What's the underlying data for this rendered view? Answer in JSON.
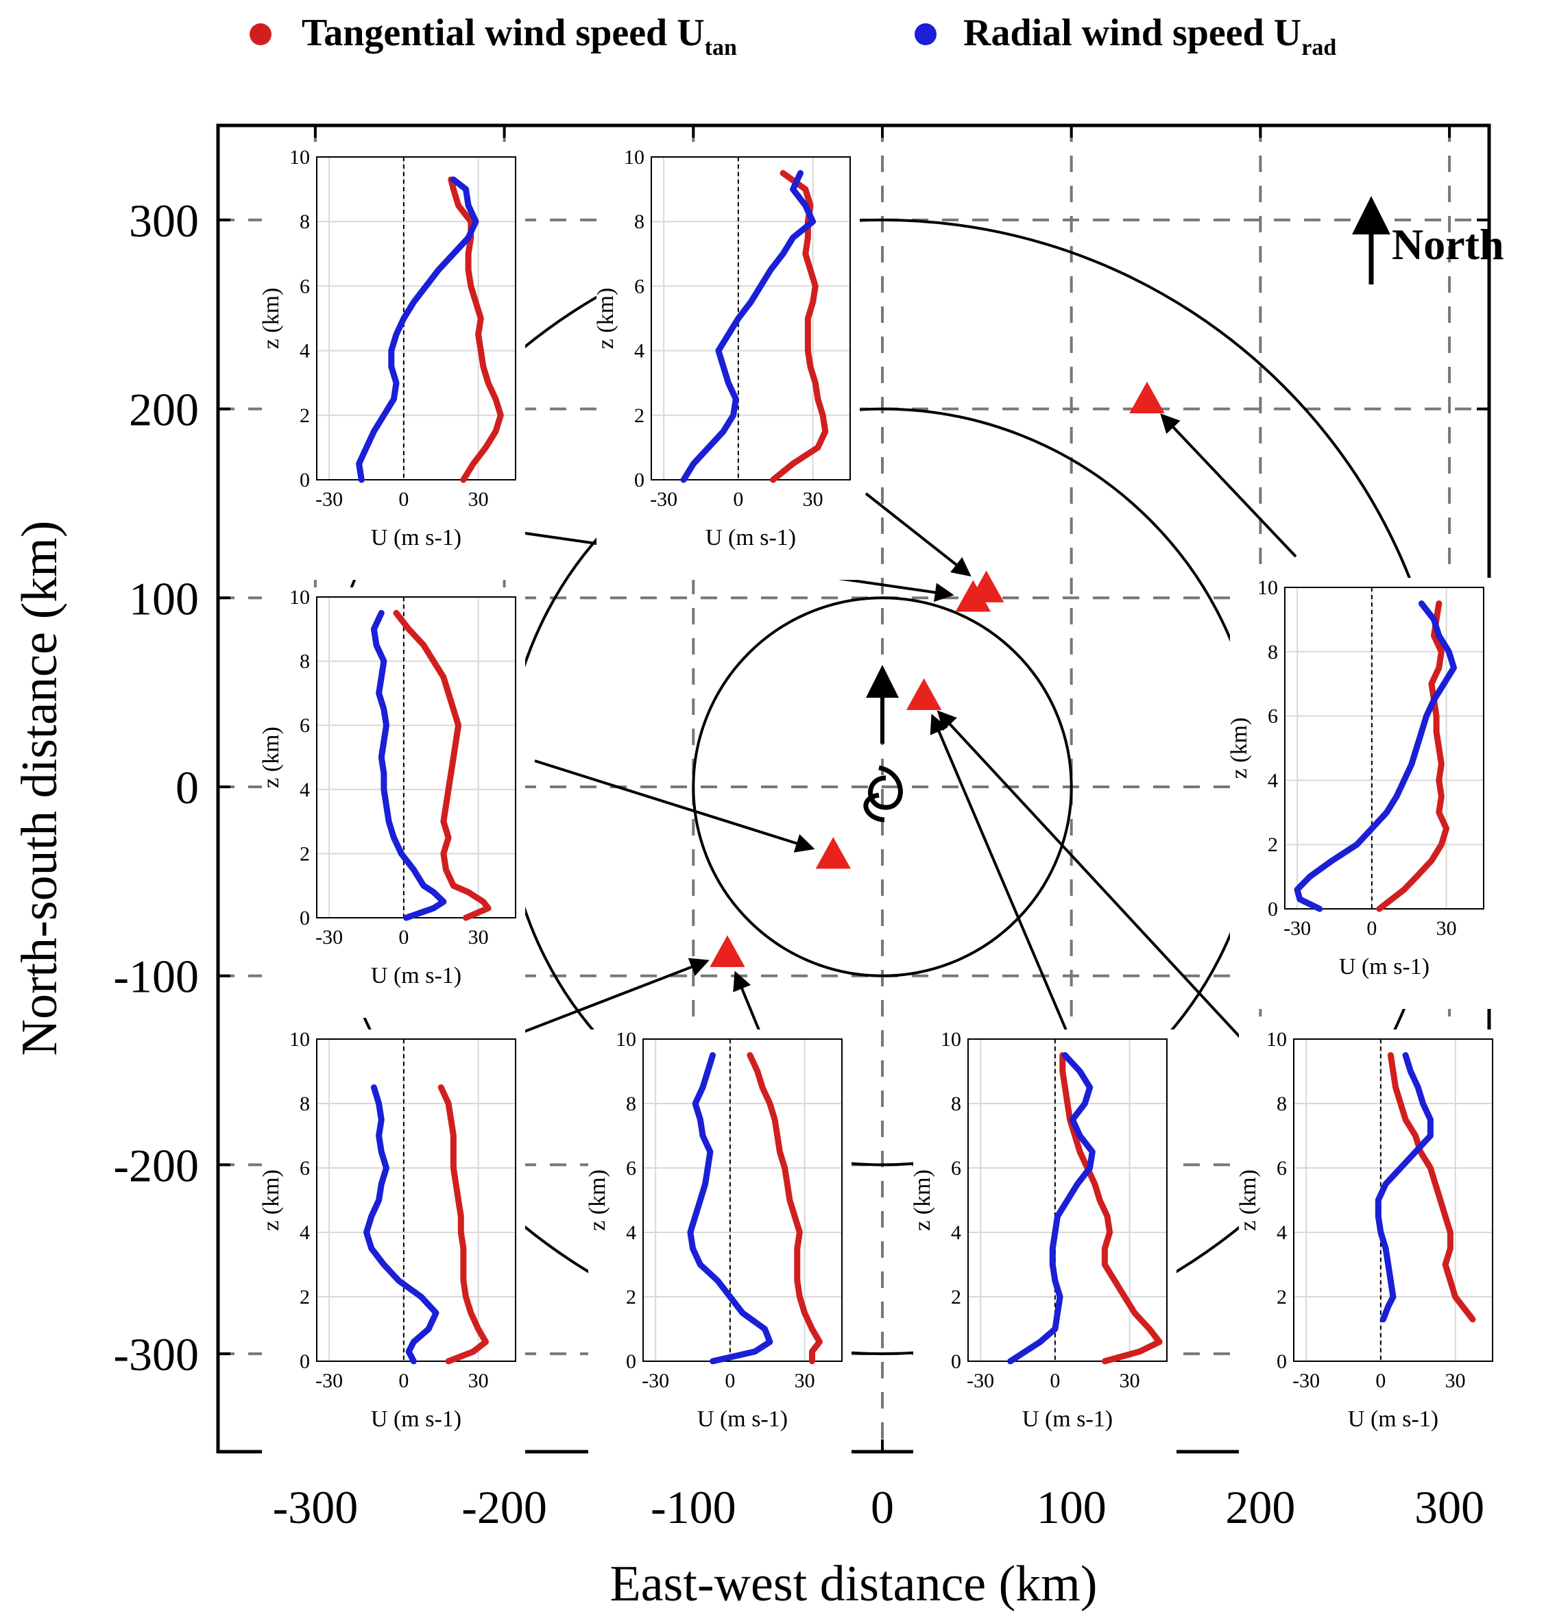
{
  "legend": {
    "tangential": {
      "label": "Tangential wind speed U",
      "sub": "tan",
      "color": "#d11f1f"
    },
    "radial": {
      "label": "Radial wind speed U",
      "sub": "rad",
      "color": "#1b1fd6"
    }
  },
  "north_label": "North",
  "chart_data": {
    "type": "scatter",
    "xlabel": "East-west distance (km)",
    "ylabel": "North-south distance (km)",
    "xlim": [
      -350,
      350
    ],
    "ylim": [
      -350,
      350
    ],
    "xticks": [
      -300,
      -200,
      -100,
      0,
      100,
      200,
      300
    ],
    "yticks": [
      -300,
      -200,
      -100,
      0,
      100,
      200,
      300
    ],
    "grid": "dashed",
    "range_circles_km": [
      100,
      200,
      300
    ],
    "storm_center": [
      0,
      0
    ],
    "storm_motion": "north",
    "sonde_positions": [
      {
        "id": "ne-outer",
        "x": 140,
        "y": 205
      },
      {
        "id": "n-rmw-a",
        "x": 48,
        "y": 100
      },
      {
        "id": "n-rmw-b",
        "x": 55,
        "y": 105
      },
      {
        "id": "n-inner",
        "x": 22,
        "y": 48
      },
      {
        "id": "sw-inner",
        "x": -26,
        "y": -36
      },
      {
        "id": "s-rmw",
        "x": -82,
        "y": -88
      }
    ],
    "profiles": {
      "xlabel": "U (m s-1)",
      "ylabel": "z (km)",
      "xlim": [
        -35,
        45
      ],
      "ylim": [
        0,
        10
      ],
      "xticks": [
        -30,
        0,
        30
      ],
      "yticks": [
        0,
        2,
        4,
        6,
        8,
        10
      ],
      "series": [
        "Tangential wind speed Utan",
        "Radial wind speed Urad"
      ],
      "panels": [
        {
          "id": "top-left",
          "target": "n-rmw-a",
          "z": [
            0,
            0.5,
            1,
            1.5,
            2,
            2.5,
            3,
            3.5,
            4,
            4.5,
            5,
            5.5,
            6,
            6.5,
            7,
            7.5,
            8,
            8.5,
            9,
            9.3
          ],
          "utan": [
            24,
            28,
            33,
            37,
            39,
            37,
            34,
            32,
            31,
            30,
            31,
            29,
            27,
            26,
            26,
            27,
            27,
            22,
            20,
            19
          ],
          "urad": [
            -17,
            -18,
            -15,
            -12,
            -8,
            -4,
            -3,
            -5,
            -5,
            -3,
            0,
            4,
            9,
            14,
            20,
            26,
            29,
            26,
            25,
            20
          ]
        },
        {
          "id": "top-mid",
          "target": "n-rmw-b",
          "z": [
            0,
            0.5,
            1,
            1.5,
            2,
            2.5,
            3,
            3.5,
            4,
            4.5,
            5,
            5.5,
            6,
            6.5,
            7,
            7.5,
            8,
            8.5,
            9,
            9.5
          ],
          "utan": [
            14,
            22,
            32,
            35,
            34,
            32,
            31,
            29,
            28,
            28,
            28,
            30,
            31,
            29,
            27,
            28,
            28,
            29,
            27,
            18
          ],
          "urad": [
            -22,
            -18,
            -12,
            -6,
            -2,
            -1,
            -4,
            -6,
            -8,
            -4,
            0,
            5,
            9,
            13,
            18,
            22,
            30,
            27,
            22,
            25
          ]
        },
        {
          "id": "mid-left",
          "target": "sw-inner",
          "z": [
            0,
            0.3,
            0.5,
            0.8,
            1,
            1.5,
            2,
            2.5,
            3,
            3.5,
            4,
            4.5,
            5,
            5.5,
            6,
            6.5,
            7,
            7.5,
            8,
            8.5,
            9,
            9.5
          ],
          "utan": [
            25,
            34,
            32,
            26,
            20,
            17,
            16,
            18,
            16,
            17,
            18,
            19,
            20,
            21,
            22,
            20,
            18,
            16,
            12,
            8,
            2,
            -3
          ],
          "urad": [
            1,
            12,
            16,
            12,
            8,
            4,
            -1,
            -4,
            -6,
            -7,
            -8,
            -8,
            -9,
            -8,
            -7,
            -8,
            -10,
            -9,
            -8,
            -11,
            -12,
            -9
          ]
        },
        {
          "id": "right",
          "target": "ne-outer",
          "z": [
            0,
            0.3,
            0.6,
            1,
            1.5,
            2,
            2.5,
            3,
            3.5,
            4,
            4.5,
            5,
            5.5,
            6,
            6.5,
            7,
            7.5,
            8,
            8.5,
            9,
            9.5
          ],
          "utan": [
            3,
            8,
            13,
            18,
            24,
            28,
            30,
            27,
            28,
            27,
            28,
            27,
            26,
            26,
            25,
            24,
            27,
            28,
            25,
            26,
            27
          ],
          "urad": [
            -21,
            -29,
            -30,
            -25,
            -16,
            -6,
            0,
            6,
            10,
            13,
            16,
            18,
            20,
            22,
            25,
            29,
            33,
            31,
            27,
            25,
            20
          ]
        },
        {
          "id": "bottom-1",
          "target": "s-rmw",
          "z": [
            0,
            0.3,
            0.6,
            1,
            1.5,
            2,
            2.5,
            3,
            3.5,
            4,
            4.5,
            5,
            5.5,
            6,
            6.5,
            7,
            7.5,
            8,
            8.5
          ],
          "utan": [
            18,
            28,
            33,
            30,
            27,
            25,
            24,
            24,
            24,
            23,
            23,
            22,
            21,
            20,
            20,
            20,
            19,
            18,
            15
          ],
          "urad": [
            4,
            2,
            4,
            10,
            13,
            7,
            -2,
            -8,
            -13,
            -15,
            -13,
            -10,
            -9,
            -7,
            -9,
            -10,
            -9,
            -10,
            -12
          ]
        },
        {
          "id": "bottom-2",
          "target": "s-rmw",
          "z": [
            0,
            0.3,
            0.6,
            1,
            1.5,
            2,
            2.5,
            3,
            3.5,
            4,
            4.5,
            5,
            5.5,
            6,
            6.5,
            7,
            7.5,
            8,
            8.5,
            9,
            9.5
          ],
          "utan": [
            33,
            33,
            36,
            33,
            30,
            28,
            27,
            27,
            27,
            28,
            26,
            24,
            23,
            22,
            20,
            19,
            18,
            16,
            13,
            11,
            8
          ],
          "urad": [
            -7,
            10,
            16,
            14,
            5,
            0,
            -5,
            -12,
            -15,
            -16,
            -14,
            -12,
            -10,
            -9,
            -8,
            -11,
            -12,
            -14,
            -11,
            -9,
            -7
          ]
        },
        {
          "id": "bottom-3",
          "target": "n-inner",
          "z": [
            0,
            0.3,
            0.6,
            1,
            1.5,
            2,
            2.5,
            3,
            3.5,
            4,
            4.5,
            5,
            5.5,
            6,
            6.5,
            7,
            7.5,
            8,
            8.5,
            9,
            9.5
          ],
          "utan": [
            20,
            34,
            42,
            38,
            32,
            28,
            24,
            20,
            20,
            22,
            21,
            18,
            16,
            13,
            10,
            8,
            6,
            5,
            4,
            3,
            3
          ],
          "urad": [
            -18,
            -12,
            -6,
            0,
            1,
            2,
            0,
            -1,
            -1,
            0,
            1,
            5,
            9,
            14,
            15,
            10,
            7,
            12,
            14,
            10,
            4
          ]
        },
        {
          "id": "bottom-4",
          "target": "n-inner",
          "z": [
            1.3,
            1.7,
            2,
            2.5,
            3,
            3.5,
            4,
            4.5,
            5,
            5.5,
            6,
            6.5,
            7,
            7.5,
            8,
            8.5,
            9,
            9.5
          ],
          "utan": [
            37,
            33,
            30,
            28,
            26,
            28,
            28,
            26,
            24,
            22,
            20,
            16,
            14,
            10,
            8,
            6,
            5,
            4
          ],
          "urad": [
            1,
            3,
            5,
            4,
            3,
            2,
            0,
            -1,
            -1,
            2,
            8,
            14,
            20,
            20,
            17,
            15,
            12,
            10
          ]
        }
      ]
    }
  }
}
